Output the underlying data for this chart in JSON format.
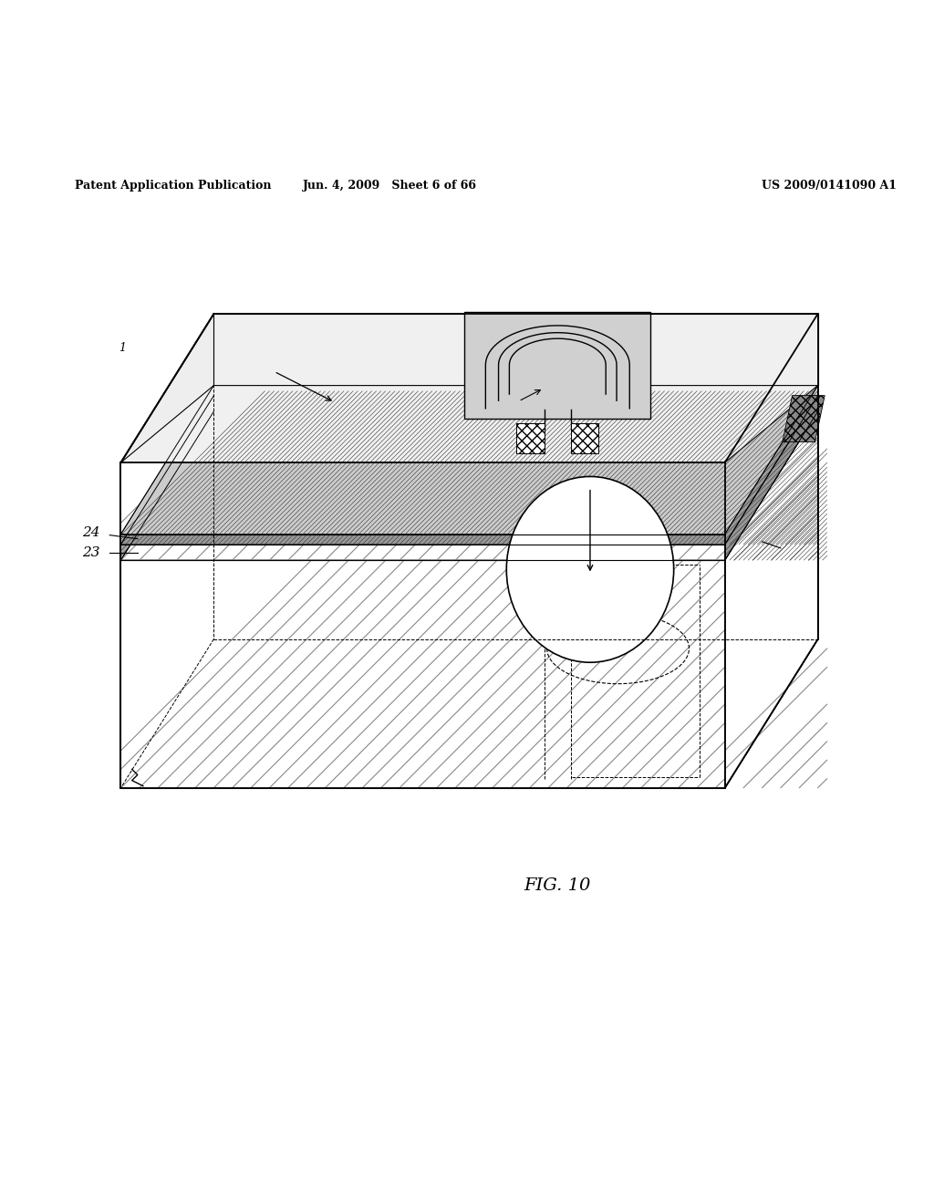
{
  "header_left": "Patent Application Publication",
  "header_mid": "Jun. 4, 2009   Sheet 6 of 66",
  "header_right": "US 2009/0141090 A1",
  "fig_label": "FIG. 10",
  "bg_color": "#ffffff",
  "line_color": "#000000"
}
